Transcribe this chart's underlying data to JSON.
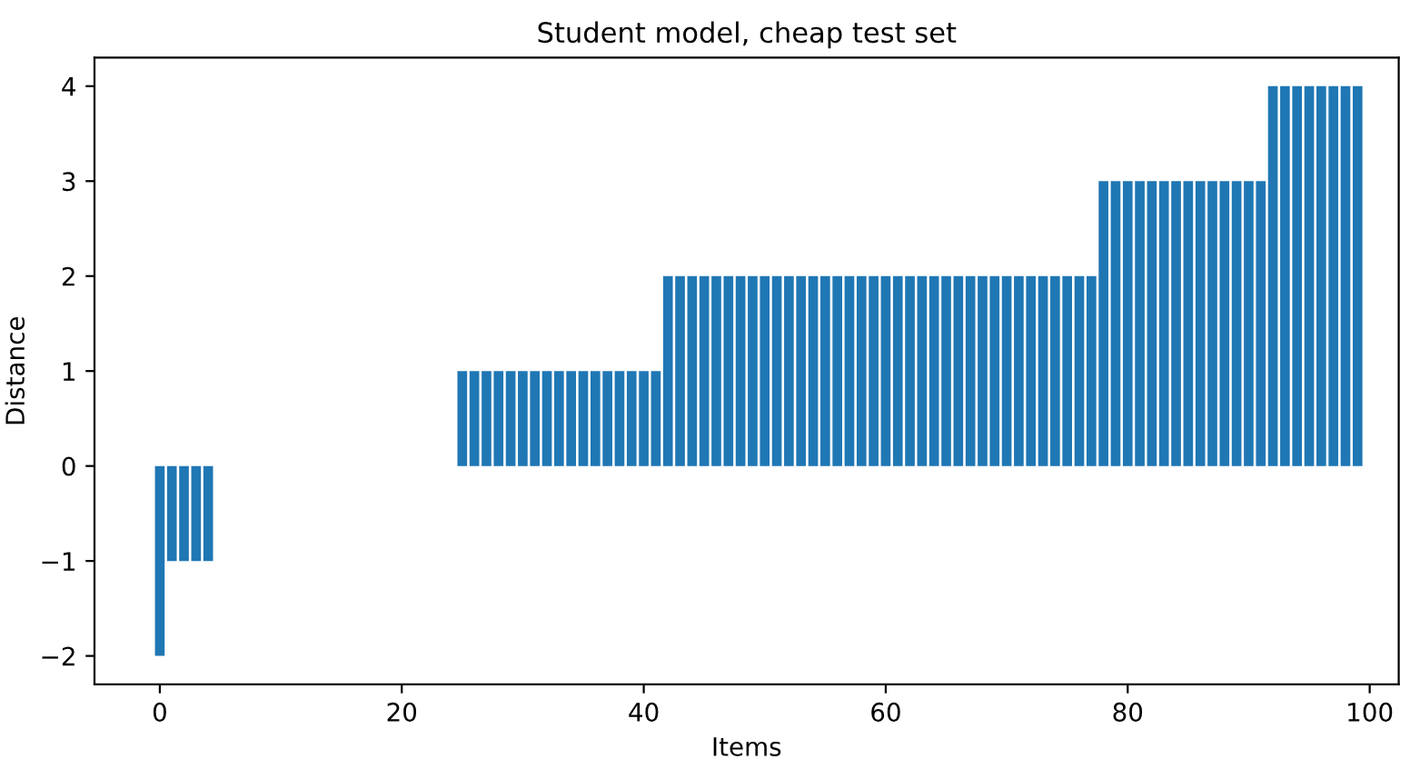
{
  "chart_data": {
    "type": "bar",
    "title": "Student model, cheap test set",
    "xlabel": "Items",
    "ylabel": "Distance",
    "color": "#1f77b4",
    "x": [
      0,
      1,
      2,
      3,
      4,
      5,
      6,
      7,
      8,
      9,
      10,
      11,
      12,
      13,
      14,
      15,
      16,
      17,
      18,
      19,
      20,
      21,
      22,
      23,
      24,
      25,
      26,
      27,
      28,
      29,
      30,
      31,
      32,
      33,
      34,
      35,
      36,
      37,
      38,
      39,
      40,
      41,
      42,
      43,
      44,
      45,
      46,
      47,
      48,
      49,
      50,
      51,
      52,
      53,
      54,
      55,
      56,
      57,
      58,
      59,
      60,
      61,
      62,
      63,
      64,
      65,
      66,
      67,
      68,
      69,
      70,
      71,
      72,
      73,
      74,
      75,
      76,
      77,
      78,
      79,
      80,
      81,
      82,
      83,
      84,
      85,
      86,
      87,
      88,
      89,
      90,
      91,
      92,
      93,
      94,
      95,
      96,
      97,
      98,
      99
    ],
    "values": [
      -2,
      -1,
      -1,
      -1,
      -1,
      0,
      0,
      0,
      0,
      0,
      0,
      0,
      0,
      0,
      0,
      0,
      0,
      0,
      0,
      0,
      0,
      0,
      0,
      0,
      0,
      1,
      1,
      1,
      1,
      1,
      1,
      1,
      1,
      1,
      1,
      1,
      1,
      1,
      1,
      1,
      1,
      1,
      2,
      2,
      2,
      2,
      2,
      2,
      2,
      2,
      2,
      2,
      2,
      2,
      2,
      2,
      2,
      2,
      2,
      2,
      2,
      2,
      2,
      2,
      2,
      2,
      2,
      2,
      2,
      2,
      2,
      2,
      2,
      2,
      2,
      2,
      2,
      2,
      3,
      3,
      3,
      3,
      3,
      3,
      3,
      3,
      3,
      3,
      3,
      3,
      3,
      3,
      4,
      4,
      4,
      4,
      4,
      4,
      4,
      4
    ],
    "xlim": [
      -5.4,
      102.4
    ],
    "xticks": [
      0,
      20,
      40,
      60,
      80,
      100
    ],
    "ylim": [
      -2.3,
      4.3
    ],
    "yticks": [
      {
        "value": -2,
        "label": "−2"
      },
      {
        "value": -1,
        "label": "−1"
      },
      0,
      1,
      2,
      3,
      4
    ],
    "grid": false
  }
}
